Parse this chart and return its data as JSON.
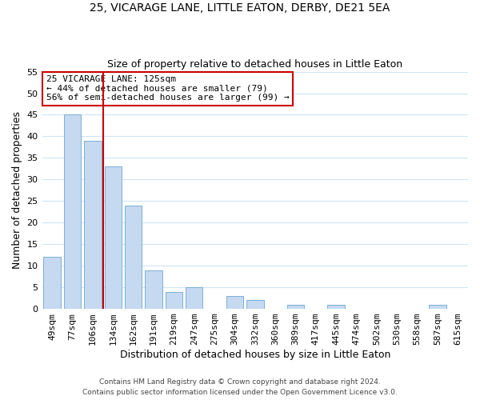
{
  "title": "25, VICARAGE LANE, LITTLE EATON, DERBY, DE21 5EA",
  "subtitle": "Size of property relative to detached houses in Little Eaton",
  "xlabel": "Distribution of detached houses by size in Little Eaton",
  "ylabel": "Number of detached properties",
  "bar_labels": [
    "49sqm",
    "77sqm",
    "106sqm",
    "134sqm",
    "162sqm",
    "191sqm",
    "219sqm",
    "247sqm",
    "275sqm",
    "304sqm",
    "332sqm",
    "360sqm",
    "389sqm",
    "417sqm",
    "445sqm",
    "474sqm",
    "502sqm",
    "530sqm",
    "558sqm",
    "587sqm",
    "615sqm"
  ],
  "bar_values": [
    12,
    45,
    39,
    33,
    24,
    9,
    4,
    5,
    0,
    3,
    2,
    0,
    1,
    0,
    1,
    0,
    0,
    0,
    0,
    1,
    0
  ],
  "bar_color": "#c5d9f1",
  "bar_edge_color": "#7bafd4",
  "vline_color": "#cc0000",
  "annotation_title": "25 VICARAGE LANE: 125sqm",
  "annotation_line1": "← 44% of detached houses are smaller (79)",
  "annotation_line2": "56% of semi-detached houses are larger (99) →",
  "annotation_box_color": "#ffffff",
  "annotation_box_edge": "#cc0000",
  "ylim": [
    0,
    55
  ],
  "yticks": [
    0,
    5,
    10,
    15,
    20,
    25,
    30,
    35,
    40,
    45,
    50,
    55
  ],
  "footer1": "Contains HM Land Registry data © Crown copyright and database right 2024.",
  "footer2": "Contains public sector information licensed under the Open Government Licence v3.0.",
  "bg_color": "#ffffff",
  "grid_color": "#d0e4f7"
}
